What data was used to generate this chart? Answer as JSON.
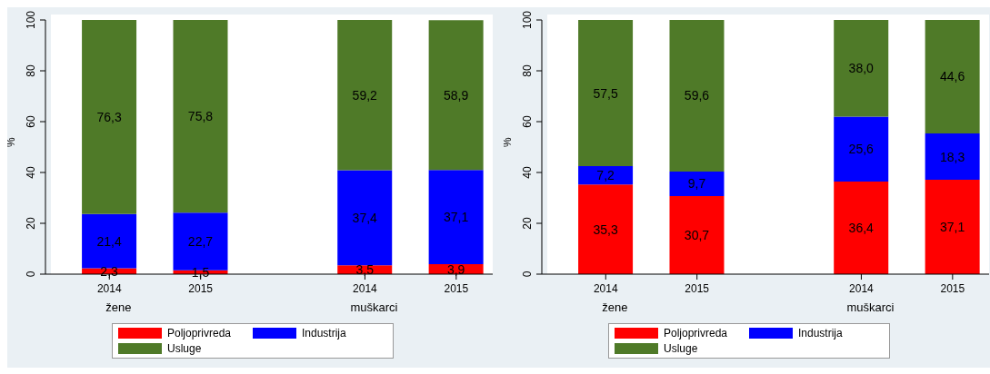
{
  "chart_data": [
    {
      "type": "bar",
      "stacked": true,
      "ylabel": "%",
      "categories": [
        "2014",
        "2015",
        "2014",
        "2015"
      ],
      "annotations": [
        "žene",
        "muškarci"
      ],
      "ylim": [
        0,
        100
      ],
      "yticks": [
        0,
        20,
        40,
        60,
        80,
        100
      ],
      "grid": false,
      "legend": "bottom",
      "series": [
        {
          "name": "Poljoprivreda",
          "color": "#ff0000",
          "values": [
            2.3,
            1.5,
            3.5,
            3.9
          ],
          "value_labels": [
            "2,3",
            "1,5",
            "3,5",
            "3,9"
          ]
        },
        {
          "name": "Industrija",
          "color": "#0000ff",
          "values": [
            21.4,
            22.7,
            37.4,
            37.1
          ],
          "value_labels": [
            "21,4",
            "22,7",
            "37,4",
            "37,1"
          ]
        },
        {
          "name": "Usluge",
          "color": "#4f7a28",
          "values": [
            76.3,
            75.8,
            59.2,
            58.9
          ],
          "value_labels": [
            "76,3",
            "75,8",
            "59,2",
            "58,9"
          ]
        }
      ]
    },
    {
      "type": "bar",
      "stacked": true,
      "ylabel": "%",
      "categories": [
        "2014",
        "2015",
        "2014",
        "2015"
      ],
      "annotations": [
        "žene",
        "muškarci"
      ],
      "ylim": [
        0,
        100
      ],
      "yticks": [
        0,
        20,
        40,
        60,
        80,
        100
      ],
      "grid": false,
      "legend": "bottom",
      "series": [
        {
          "name": "Poljoprivreda",
          "color": "#ff0000",
          "values": [
            35.3,
            30.7,
            36.4,
            37.1
          ],
          "value_labels": [
            "35,3",
            "30,7",
            "36,4",
            "37,1"
          ]
        },
        {
          "name": "Industrija",
          "color": "#0000ff",
          "values": [
            7.2,
            9.7,
            25.6,
            18.3
          ],
          "value_labels": [
            "7,2",
            "9,7",
            "25,6",
            "18,3"
          ]
        },
        {
          "name": "Usluge",
          "color": "#4f7a28",
          "values": [
            57.5,
            59.6,
            38.0,
            44.6
          ],
          "value_labels": [
            "57,5",
            "59,6",
            "38,0",
            "44,6"
          ]
        }
      ]
    }
  ]
}
